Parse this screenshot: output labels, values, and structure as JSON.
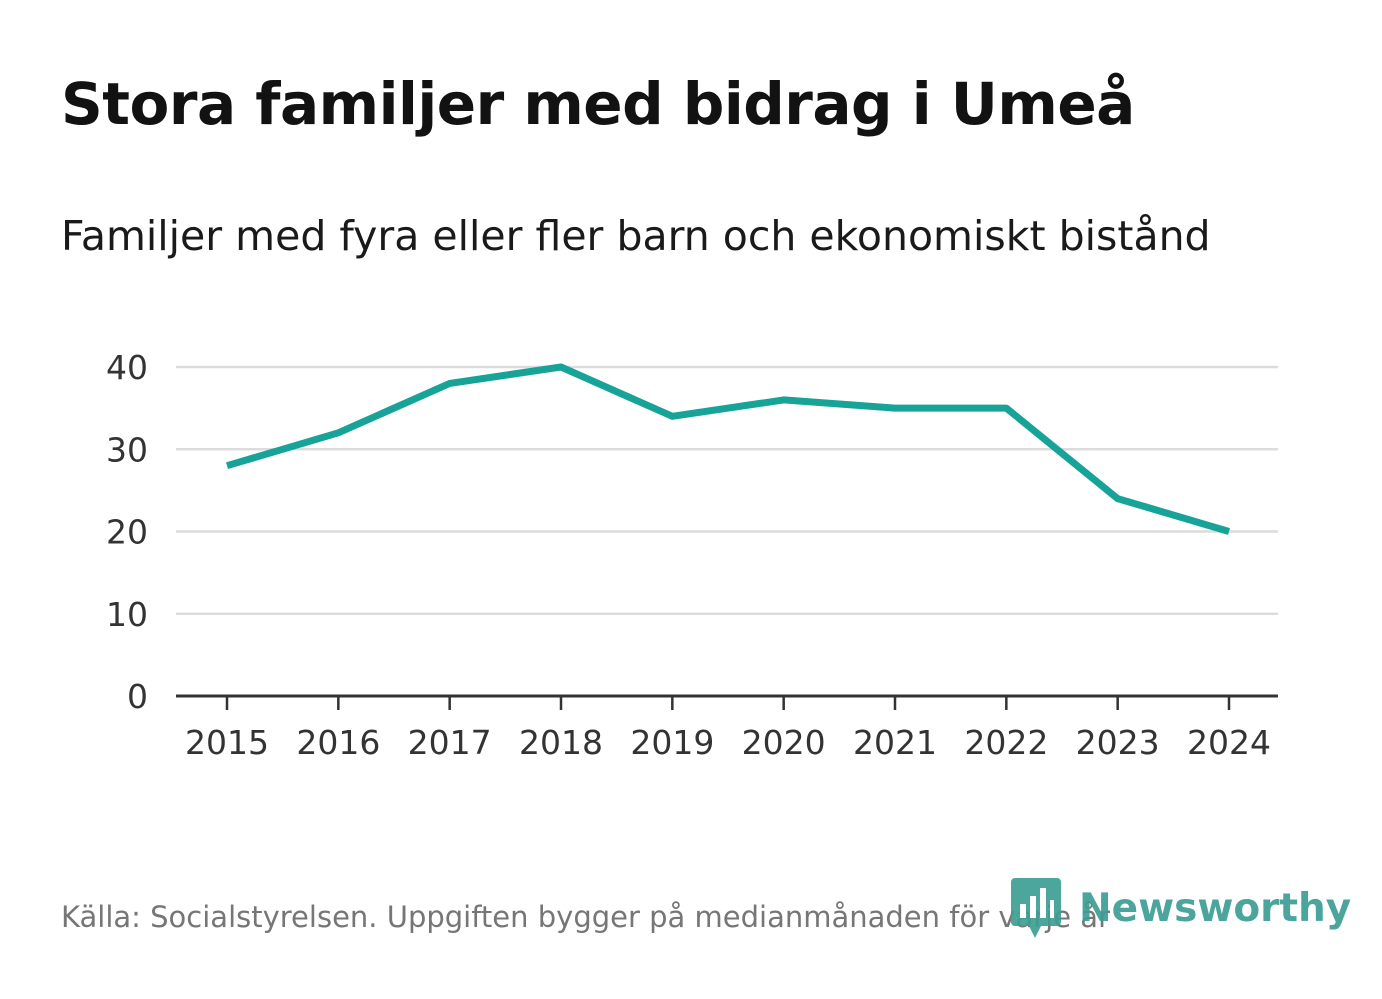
{
  "chart_data": {
    "type": "line",
    "title": "Stora familjer med bidrag i Umeå",
    "subtitle": "Familjer med fyra eller fler barn och ekonomiskt bistånd",
    "x": [
      "2015",
      "2016",
      "2017",
      "2018",
      "2019",
      "2020",
      "2021",
      "2022",
      "2023",
      "2024"
    ],
    "series": [
      {
        "values": [
          28,
          32,
          38,
          40,
          34,
          36,
          35,
          35,
          24,
          20
        ]
      }
    ],
    "y_ticks": [
      "0",
      "10",
      "20",
      "30",
      "40"
    ],
    "ylim": [
      0,
      40
    ],
    "grid": true,
    "legend": "none",
    "colors": {
      "line": "#17a398",
      "grid": "#dcdcdc",
      "axis": "#333333"
    }
  },
  "footer": {
    "source": "Källa: Socialstyrelsen. Uppgiften bygger på medianmånaden för varje år"
  },
  "brand": {
    "name": "Newsworthy",
    "icon": "newsworthy-logo-icon",
    "color": "#3d9e94"
  }
}
